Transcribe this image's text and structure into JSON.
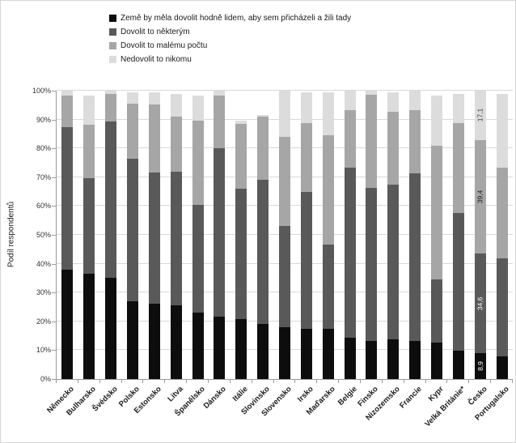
{
  "chart": {
    "background": "#ffffff",
    "border_color": "#d6d6d6",
    "gridline_color": "#d9d9d9",
    "axis_color": "#9a9a9a"
  },
  "legend": {
    "position": "top",
    "items": [
      {
        "label": "Země by měla dovolit hodně lidem, aby sem přicházeli a žili tady",
        "color": "#0d0d0d"
      },
      {
        "label": "Dovolit to některým",
        "color": "#595959"
      },
      {
        "label": "Dovolit to malému počtu",
        "color": "#a6a6a6"
      },
      {
        "label": "Nedovolit to nikomu",
        "color": "#dcdcdc"
      }
    ]
  },
  "y_axis": {
    "title": "Podíl respondentů",
    "tick_labels": [
      "100%",
      "90%",
      "80%",
      "70%",
      "60%",
      "50%",
      "40%",
      "30%",
      "20%",
      "10%",
      "0%"
    ]
  },
  "chart_data": {
    "type": "bar",
    "stacked": true,
    "orientation": "vertical",
    "ylim": [
      0,
      100
    ],
    "grid": true,
    "legend_position": "top",
    "ylabel": "Podíl respondentů",
    "xlabel": "",
    "categories": [
      "Německo",
      "Bulharsko",
      "Švédsko",
      "Polsko",
      "Estonsko",
      "Litva",
      "Španělsko",
      "Dánsko",
      "Itálie",
      "Slovinsko",
      "Slovensko",
      "Irsko",
      "Maďarsko",
      "Belgie",
      "Finsko",
      "Nizozemsko",
      "Francie",
      "Kypr",
      "Velká Británie*",
      "Česko",
      "Portugalsko"
    ],
    "series": [
      {
        "name": "Země by měla dovolit hodně lidem, aby sem přicházeli a žili tady",
        "color": "#0d0d0d",
        "values": [
          38.0,
          36.4,
          35.1,
          26.9,
          26.1,
          25.5,
          23.1,
          21.5,
          20.8,
          19.0,
          18.0,
          17.5,
          17.5,
          14.2,
          13.3,
          13.8,
          13.2,
          12.6,
          9.7,
          8.9,
          8.0
        ]
      },
      {
        "name": "Dovolit to některým",
        "color": "#595959",
        "values": [
          49.5,
          33.3,
          54.3,
          49.4,
          45.6,
          46.4,
          37.2,
          58.6,
          45.3,
          50.0,
          35.2,
          47.4,
          29.1,
          59.1,
          53.0,
          53.5,
          58.2,
          21.9,
          47.8,
          34.6,
          34.0
        ]
      },
      {
        "name": "Dovolit to malému počtu",
        "color": "#a6a6a6",
        "values": [
          10.8,
          18.6,
          9.6,
          19.1,
          23.5,
          19.2,
          29.2,
          18.3,
          22.5,
          22.0,
          30.9,
          23.9,
          37.9,
          20.1,
          32.3,
          25.5,
          21.8,
          46.3,
          31.3,
          39.4,
          31.3
        ]
      },
      {
        "name": "Nedovolit to nikomu",
        "color": "#dcdcdc",
        "values": [
          1.7,
          10.0,
          1.0,
          4.1,
          4.3,
          7.9,
          8.7,
          1.6,
          0.9,
          0.5,
          15.9,
          10.7,
          15.0,
          6.6,
          1.4,
          6.6,
          6.8,
          17.6,
          10.2,
          17.1,
          25.7
        ]
      }
    ],
    "data_labels": {
      "category": "Česko",
      "labels": [
        {
          "text": "8,9",
          "series_index": 0,
          "color": "#ffffff"
        },
        {
          "text": "34,6",
          "series_index": 1,
          "color": "#ffffff"
        },
        {
          "text": "39,4",
          "series_index": 2,
          "color": "#1a1a1a"
        },
        {
          "text": "17,1",
          "series_index": 3,
          "color": "#404040"
        }
      ]
    }
  }
}
